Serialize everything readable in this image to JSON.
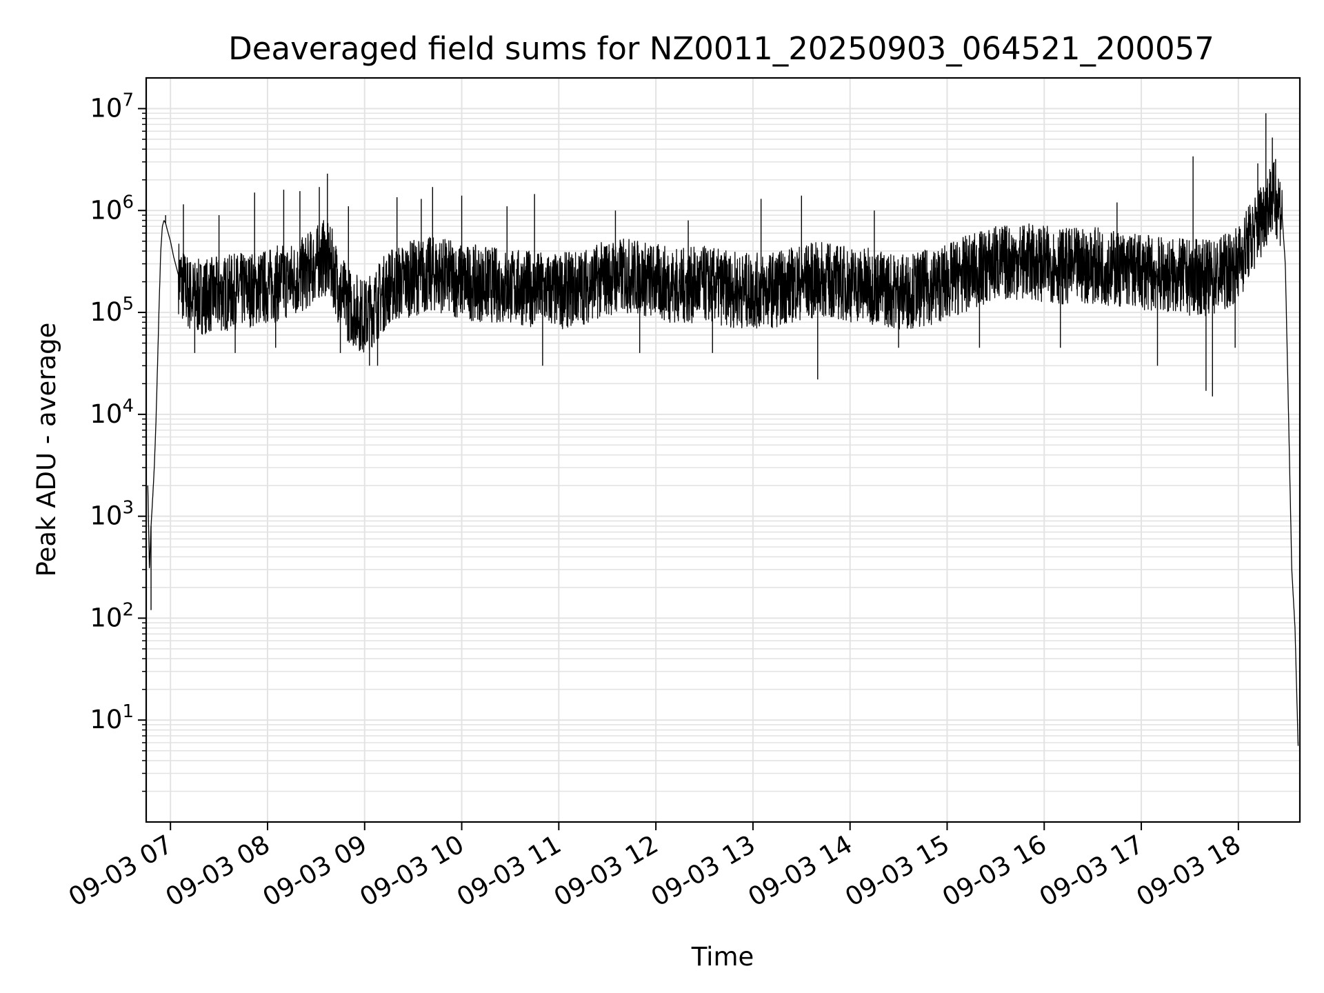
{
  "chart_data": {
    "type": "line",
    "title": "Deaveraged field sums for NZ0011_20250903_064521_200057",
    "xlabel": "Time",
    "ylabel": "Peak ADU - average",
    "yscale": "log",
    "grid": true,
    "xlim": [
      "2025-09-03 06:45",
      "2025-09-03 18:38"
    ],
    "ylim": [
      1,
      20000000
    ],
    "x_ticks": [
      "09-03 07",
      "09-03 08",
      "09-03 09",
      "09-03 10",
      "09-03 11",
      "09-03 12",
      "09-03 13",
      "09-03 14",
      "09-03 15",
      "09-03 16",
      "09-03 17",
      "09-03 18"
    ],
    "y_ticks": [
      {
        "base": "10",
        "exp": "1"
      },
      {
        "base": "10",
        "exp": "2"
      },
      {
        "base": "10",
        "exp": "3"
      },
      {
        "base": "10",
        "exp": "4"
      },
      {
        "base": "10",
        "exp": "5"
      },
      {
        "base": "10",
        "exp": "6"
      },
      {
        "base": "10",
        "exp": "7"
      }
    ],
    "series": [
      {
        "color": "#000000",
        "x": [
          "06:46",
          "06:47",
          "06:48",
          "06:49",
          "06:50",
          "06:51",
          "06:52",
          "06:53",
          "06:54",
          "06:55",
          "06:56",
          "06:57",
          "06:58",
          "07:00",
          "07:02",
          "07:05",
          "07:08",
          "07:12",
          "07:16",
          "07:20",
          "07:30",
          "07:40",
          "07:50",
          "08:00",
          "08:10",
          "08:20",
          "08:30",
          "08:35",
          "08:40",
          "08:45",
          "08:50",
          "09:00",
          "09:05",
          "09:15",
          "09:30",
          "09:45",
          "10:00",
          "10:15",
          "10:30",
          "10:45",
          "11:00",
          "11:15",
          "11:30",
          "11:45",
          "12:00",
          "12:15",
          "12:30",
          "12:45",
          "13:00",
          "13:15",
          "13:30",
          "13:45",
          "14:00",
          "14:15",
          "14:30",
          "14:45",
          "15:00",
          "15:15",
          "15:30",
          "15:45",
          "16:00",
          "16:15",
          "16:30",
          "16:45",
          "17:00",
          "17:15",
          "17:30",
          "17:45",
          "18:00",
          "18:05",
          "18:10",
          "18:15",
          "18:20",
          "18:25",
          "18:27",
          "18:29",
          "18:31",
          "18:33",
          "18:35",
          "18:36",
          "18:37"
        ],
        "y": [
          2000,
          300,
          800,
          1500,
          3000,
          8000,
          30000,
          120000,
          400000,
          700000,
          800000,
          750000,
          650000,
          500000,
          350000,
          230000,
          180000,
          150000,
          140000,
          145000,
          150000,
          160000,
          170000,
          180000,
          200000,
          220000,
          300000,
          350000,
          280000,
          160000,
          120000,
          90000,
          110000,
          180000,
          220000,
          240000,
          200000,
          190000,
          180000,
          170000,
          160000,
          180000,
          220000,
          230000,
          200000,
          180000,
          190000,
          170000,
          160000,
          170000,
          200000,
          210000,
          190000,
          180000,
          160000,
          170000,
          200000,
          250000,
          300000,
          320000,
          300000,
          280000,
          290000,
          270000,
          250000,
          230000,
          220000,
          220000,
          300000,
          450000,
          600000,
          900000,
          1300000,
          1200000,
          900000,
          300000,
          10000,
          300,
          80,
          20,
          5
        ]
      }
    ],
    "spikes": [
      {
        "x": "06:57",
        "y": 900000
      },
      {
        "x": "07:08",
        "y": 1150000
      },
      {
        "x": "07:30",
        "y": 900000
      },
      {
        "x": "07:52",
        "y": 1500000
      },
      {
        "x": "08:10",
        "y": 1600000
      },
      {
        "x": "08:20",
        "y": 1550000
      },
      {
        "x": "08:32",
        "y": 1700000
      },
      {
        "x": "08:37",
        "y": 2300000
      },
      {
        "x": "08:50",
        "y": 1100000
      },
      {
        "x": "09:20",
        "y": 1350000
      },
      {
        "x": "09:35",
        "y": 1300000
      },
      {
        "x": "09:42",
        "y": 1700000
      },
      {
        "x": "10:00",
        "y": 1400000
      },
      {
        "x": "10:28",
        "y": 1100000
      },
      {
        "x": "10:45",
        "y": 1450000
      },
      {
        "x": "11:35",
        "y": 1000000
      },
      {
        "x": "12:20",
        "y": 800000
      },
      {
        "x": "13:05",
        "y": 1300000
      },
      {
        "x": "13:30",
        "y": 1400000
      },
      {
        "x": "14:15",
        "y": 1000000
      },
      {
        "x": "15:30",
        "y": 700000
      },
      {
        "x": "16:45",
        "y": 1200000
      },
      {
        "x": "17:32",
        "y": 3400000
      },
      {
        "x": "18:12",
        "y": 2900000
      },
      {
        "x": "18:17",
        "y": 9000000
      },
      {
        "x": "18:21",
        "y": 5200000
      },
      {
        "x": "18:23",
        "y": 3200000
      }
    ],
    "dips": [
      {
        "x": "06:48",
        "y": 120
      },
      {
        "x": "07:15",
        "y": 40000
      },
      {
        "x": "07:40",
        "y": 40000
      },
      {
        "x": "08:05",
        "y": 45000
      },
      {
        "x": "08:45",
        "y": 40000
      },
      {
        "x": "09:03",
        "y": 30000
      },
      {
        "x": "09:08",
        "y": 30000
      },
      {
        "x": "10:50",
        "y": 30000
      },
      {
        "x": "11:50",
        "y": 40000
      },
      {
        "x": "12:35",
        "y": 40000
      },
      {
        "x": "13:40",
        "y": 22000
      },
      {
        "x": "14:30",
        "y": 45000
      },
      {
        "x": "15:20",
        "y": 45000
      },
      {
        "x": "16:10",
        "y": 45000
      },
      {
        "x": "17:10",
        "y": 30000
      },
      {
        "x": "17:40",
        "y": 17000
      },
      {
        "x": "17:44",
        "y": 15000
      },
      {
        "x": "17:58",
        "y": 45000
      }
    ]
  }
}
